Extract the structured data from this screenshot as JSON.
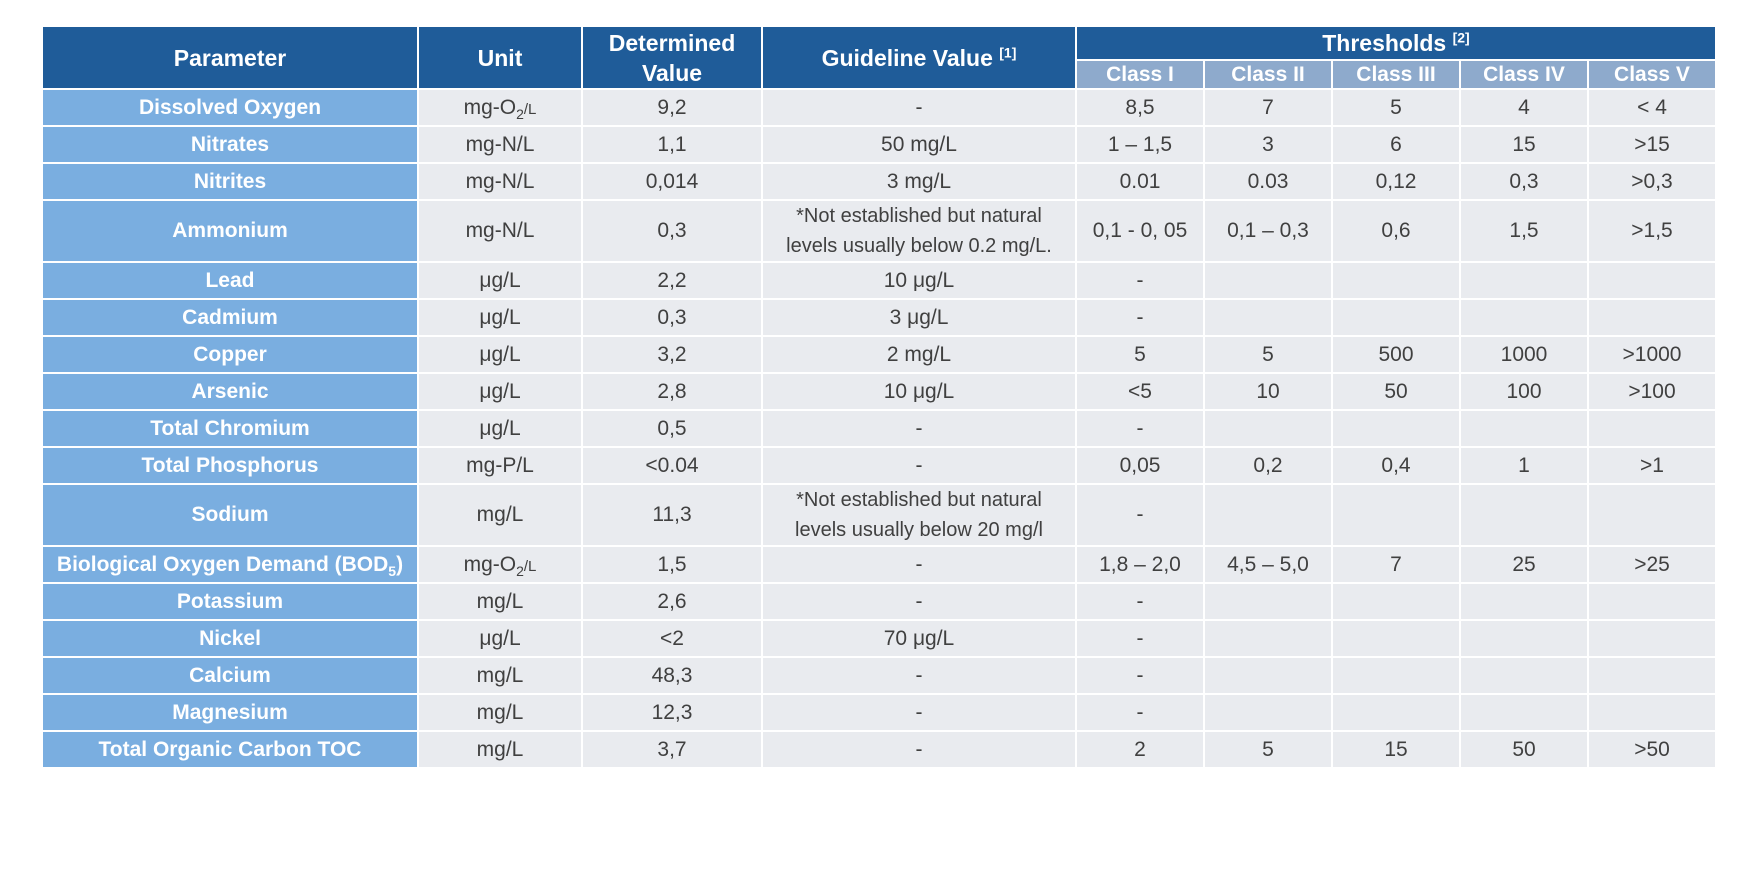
{
  "header": {
    "parameter": "Parameter",
    "unit": "Unit",
    "determined_line1": "Determined",
    "determined_line2": "Value",
    "guideline": "Guideline Value",
    "guideline_ref": "[1]",
    "thresholds": "Thresholds",
    "thresholds_ref": "[2]",
    "classes": [
      "Class I",
      "Class II",
      "Class III",
      "Class IV",
      "Class V"
    ]
  },
  "rows": [
    {
      "parameter": "Dissolved Oxygen",
      "unit": "mg-O",
      "unit_sub": "2",
      "unit_tail": "/L",
      "determined": "9,2",
      "guideline": "-",
      "thresholds": [
        "8,5",
        "7",
        "5",
        "4",
        "< 4"
      ]
    },
    {
      "parameter": "Nitrates",
      "unit": "mg-N/L",
      "determined": "1,1",
      "guideline": "50 mg/L",
      "thresholds": [
        "1 – 1,5",
        "3",
        "6",
        "15",
        ">15"
      ]
    },
    {
      "parameter": "Nitrites",
      "unit": "mg-N/L",
      "determined": "0,014",
      "guideline": "3 mg/L",
      "thresholds": [
        "0.01",
        "0.03",
        "0,12",
        "0,3",
        ">0,3"
      ]
    },
    {
      "parameter": "Ammonium",
      "unit": "mg-N/L",
      "determined": "0,3",
      "guideline_line1": "*Not established but natural",
      "guideline_line2": "levels usually below 0.2 mg/L.",
      "thresholds": [
        "0,1 - 0, 05",
        "0,1 – 0,3",
        "0,6",
        "1,5",
        ">1,5"
      ]
    },
    {
      "parameter": "Lead",
      "unit": "μg/L",
      "determined": "2,2",
      "guideline": "10 μg/L",
      "thresholds": [
        "-",
        "",
        "",
        "",
        ""
      ]
    },
    {
      "parameter": "Cadmium",
      "unit": "μg/L",
      "determined": "0,3",
      "guideline": "3 μg/L",
      "thresholds": [
        "-",
        "",
        "",
        "",
        ""
      ]
    },
    {
      "parameter": "Copper",
      "unit": "μg/L",
      "determined": "3,2",
      "guideline": "2 mg/L",
      "thresholds": [
        "5",
        "5",
        "500",
        "1000",
        ">1000"
      ]
    },
    {
      "parameter": "Arsenic",
      "unit": "μg/L",
      "determined": "2,8",
      "guideline": "10 μg/L",
      "thresholds": [
        "<5",
        "10",
        "50",
        "100",
        ">100"
      ]
    },
    {
      "parameter": "Total Chromium",
      "unit": "μg/L",
      "determined": "0,5",
      "guideline": "-",
      "thresholds": [
        "-",
        "",
        "",
        "",
        ""
      ]
    },
    {
      "parameter": "Total Phosphorus",
      "unit": "mg-P/L",
      "determined": "<0.04",
      "guideline": "-",
      "thresholds": [
        "0,05",
        "0,2",
        "0,4",
        "1",
        ">1"
      ]
    },
    {
      "parameter": "Sodium",
      "unit": "mg/L",
      "determined": "11,3",
      "guideline_line1": "*Not established but natural",
      "guideline_line2": "levels usually below 20 mg/l",
      "thresholds": [
        "-",
        "",
        "",
        "",
        ""
      ]
    },
    {
      "parameter": "Biological Oxygen Demand (BOD",
      "parameter_sub": "5",
      "parameter_tail": ")",
      "unit": "mg-O",
      "unit_sub": "2",
      "unit_tail": "/L",
      "determined": "1,5",
      "guideline": "-",
      "thresholds": [
        "1,8 – 2,0",
        "4,5 – 5,0",
        "7",
        "25",
        ">25"
      ]
    },
    {
      "parameter": "Potassium",
      "unit": "mg/L",
      "determined": "2,6",
      "guideline": "-",
      "thresholds": [
        "-",
        "",
        "",
        "",
        ""
      ]
    },
    {
      "parameter": "Nickel",
      "unit": "μg/L",
      "determined": "<2",
      "guideline": "70 μg/L",
      "thresholds": [
        "-",
        "",
        "",
        "",
        ""
      ]
    },
    {
      "parameter": "Calcium",
      "unit": "mg/L",
      "determined": "48,3",
      "guideline": "-",
      "thresholds": [
        "-",
        "",
        "",
        "",
        ""
      ]
    },
    {
      "parameter": "Magnesium",
      "unit": "mg/L",
      "determined": "12,3",
      "guideline": "-",
      "thresholds": [
        "-",
        "",
        "",
        "",
        ""
      ]
    },
    {
      "parameter": "Total Organic Carbon TOC",
      "unit": "mg/L",
      "determined": "3,7",
      "guideline": "-",
      "thresholds": [
        "2",
        "5",
        "15",
        "50",
        ">50"
      ]
    }
  ]
}
